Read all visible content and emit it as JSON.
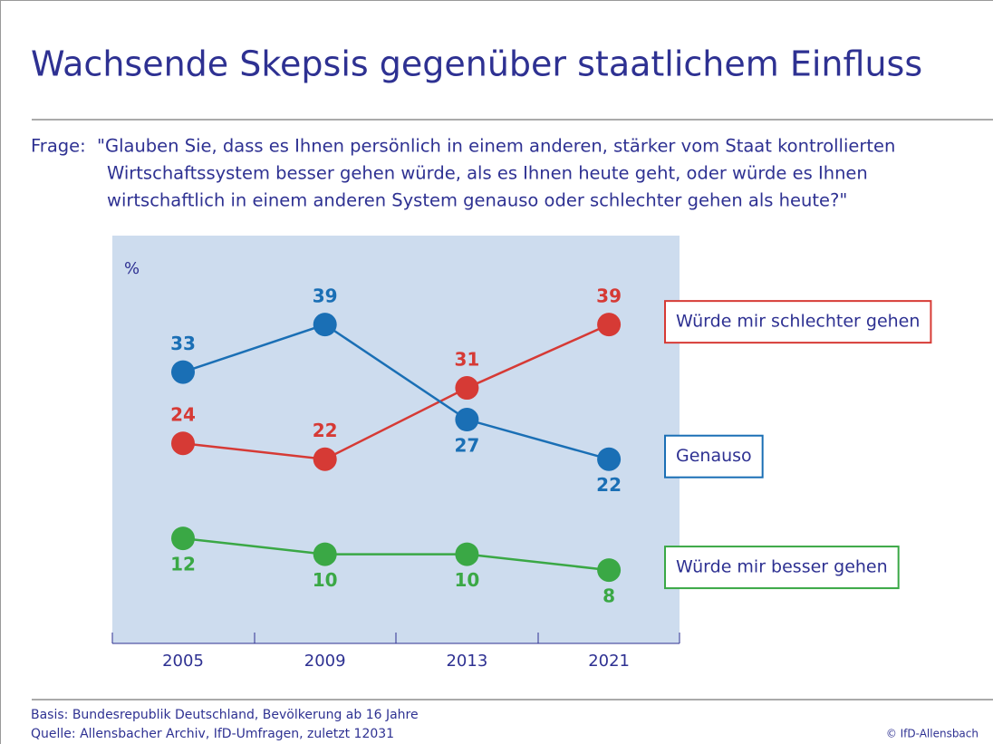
{
  "chart_data": {
    "type": "line",
    "title": "Wachsende Skepsis gegenüber staatlichem Einfluss",
    "question": {
      "label": "Frage:",
      "lines": [
        "\"Glauben Sie, dass es Ihnen persönlich in einem anderen, stärker vom Staat kontrollierten",
        "Wirtschaftssystem besser gehen würde, als es Ihnen heute geht, oder würde es Ihnen",
        "wirtschaftlich in einem anderen System genauso oder schlechter gehen als heute?\""
      ]
    },
    "y_label": "%",
    "categories": [
      "2005",
      "2009",
      "2013",
      "2021"
    ],
    "series": [
      {
        "name": "Würde mir schlechter gehen",
        "color": "#d63a35",
        "values": [
          24,
          22,
          31,
          39
        ]
      },
      {
        "name": "Genauso",
        "color": "#1a6fb5",
        "values": [
          33,
          39,
          27,
          22
        ]
      },
      {
        "name": "Würde mir besser gehen",
        "color": "#3aa845",
        "values": [
          12,
          10,
          10,
          8
        ]
      }
    ],
    "ylim": [
      0,
      50
    ],
    "footer": {
      "basis": "Basis: Bundesrepublik Deutschland, Bevölkerung ab 16 Jahre",
      "source": "Quelle: Allensbacher Archiv, IfD-Umfragen, zuletzt 12031",
      "copyright": "© IfD-Allensbach"
    }
  }
}
